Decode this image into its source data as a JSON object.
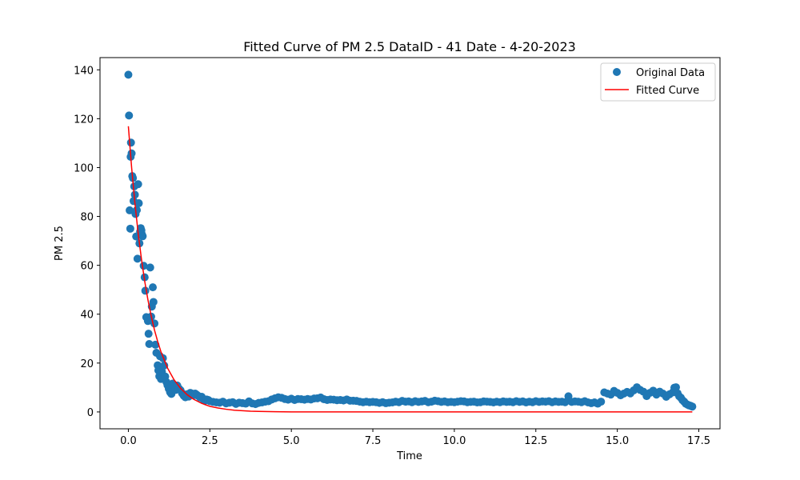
{
  "chart_data": {
    "type": "scatter",
    "title": "Fitted Curve of PM 2.5 DataID - 41 Date - 4-20-2023",
    "xlabel": "Time",
    "ylabel": "PM 2.5",
    "xlim": [
      -0.87,
      18.15
    ],
    "ylim": [
      -6.9,
      145.0
    ],
    "x_ticks": [
      0.0,
      2.5,
      5.0,
      7.5,
      10.0,
      12.5,
      15.0,
      17.5
    ],
    "x_tick_labels": [
      "0.0",
      "2.5",
      "5.0",
      "7.5",
      "10.0",
      "12.5",
      "15.0",
      "17.5"
    ],
    "y_ticks": [
      0,
      20,
      40,
      60,
      80,
      100,
      120,
      140
    ],
    "y_tick_labels": [
      "0",
      "20",
      "40",
      "60",
      "80",
      "100",
      "120",
      "140"
    ],
    "grid": false,
    "legend_position": "top-right",
    "series": [
      {
        "name": "Original Data",
        "kind": "scatter",
        "color": "#1f77b4",
        "points": [
          [
            0.0,
            138.0
          ],
          [
            0.02,
            121.3
          ],
          [
            0.04,
            82.5
          ],
          [
            0.06,
            75.0
          ],
          [
            0.07,
            104.4
          ],
          [
            0.08,
            110.2
          ],
          [
            0.1,
            105.8
          ],
          [
            0.12,
            96.5
          ],
          [
            0.14,
            95.7
          ],
          [
            0.16,
            86.3
          ],
          [
            0.18,
            92.3
          ],
          [
            0.2,
            88.9
          ],
          [
            0.22,
            81.0
          ],
          [
            0.24,
            71.8
          ],
          [
            0.26,
            82.6
          ],
          [
            0.28,
            62.7
          ],
          [
            0.3,
            93.2
          ],
          [
            0.32,
            85.4
          ],
          [
            0.34,
            69.0
          ],
          [
            0.36,
            73.8
          ],
          [
            0.38,
            75.2
          ],
          [
            0.4,
            74.3
          ],
          [
            0.42,
            72.6
          ],
          [
            0.44,
            71.9
          ],
          [
            0.47,
            59.8
          ],
          [
            0.5,
            55.1
          ],
          [
            0.52,
            49.6
          ],
          [
            0.55,
            38.8
          ],
          [
            0.58,
            38.6
          ],
          [
            0.6,
            37.2
          ],
          [
            0.62,
            32.0
          ],
          [
            0.64,
            27.8
          ],
          [
            0.67,
            59.1
          ],
          [
            0.7,
            39.0
          ],
          [
            0.72,
            43.1
          ],
          [
            0.75,
            51.0
          ],
          [
            0.77,
            45.0
          ],
          [
            0.8,
            36.2
          ],
          [
            0.83,
            27.5
          ],
          [
            0.86,
            24.2
          ],
          [
            0.9,
            19.1
          ],
          [
            0.92,
            17.0
          ],
          [
            0.95,
            14.6
          ],
          [
            0.97,
            22.8
          ],
          [
            1.0,
            13.5
          ],
          [
            1.03,
            16.5
          ],
          [
            1.06,
            22.0
          ],
          [
            1.1,
            19.0
          ],
          [
            1.13,
            14.5
          ],
          [
            1.17,
            12.2
          ],
          [
            1.2,
            11.0
          ],
          [
            1.24,
            9.5
          ],
          [
            1.28,
            8.1
          ],
          [
            1.32,
            7.4
          ],
          [
            1.36,
            11.6
          ],
          [
            1.4,
            10.5
          ],
          [
            1.45,
            9.0
          ],
          [
            1.5,
            10.8
          ],
          [
            1.55,
            9.6
          ],
          [
            1.6,
            8.9
          ],
          [
            1.65,
            7.6
          ],
          [
            1.7,
            6.6
          ],
          [
            1.75,
            6.0
          ],
          [
            1.8,
            7.2
          ],
          [
            1.85,
            6.3
          ],
          [
            1.9,
            7.8
          ],
          [
            1.95,
            7.5
          ],
          [
            2.0,
            6.8
          ],
          [
            2.05,
            7.5
          ],
          [
            2.1,
            7.0
          ],
          [
            2.15,
            6.5
          ],
          [
            2.2,
            5.9
          ],
          [
            2.25,
            6.2
          ],
          [
            2.3,
            5.2
          ],
          [
            2.35,
            4.6
          ],
          [
            2.4,
            5.1
          ],
          [
            2.45,
            4.9
          ],
          [
            2.5,
            4.4
          ],
          [
            2.6,
            4.1
          ],
          [
            2.7,
            3.9
          ],
          [
            2.8,
            3.8
          ],
          [
            2.9,
            4.2
          ],
          [
            3.0,
            3.5
          ],
          [
            3.1,
            3.8
          ],
          [
            3.2,
            4.0
          ],
          [
            3.3,
            3.3
          ],
          [
            3.4,
            3.8
          ],
          [
            3.5,
            3.6
          ],
          [
            3.6,
            3.4
          ],
          [
            3.7,
            4.3
          ],
          [
            3.8,
            3.5
          ],
          [
            3.9,
            3.2
          ],
          [
            4.0,
            3.7
          ],
          [
            4.1,
            3.9
          ],
          [
            4.2,
            4.2
          ],
          [
            4.3,
            4.4
          ],
          [
            4.4,
            5.1
          ],
          [
            4.5,
            5.6
          ],
          [
            4.6,
            6.0
          ],
          [
            4.7,
            5.8
          ],
          [
            4.8,
            5.3
          ],
          [
            4.9,
            5.0
          ],
          [
            5.0,
            5.4
          ],
          [
            5.1,
            4.9
          ],
          [
            5.2,
            5.3
          ],
          [
            5.3,
            5.2
          ],
          [
            5.4,
            5.0
          ],
          [
            5.5,
            5.3
          ],
          [
            5.6,
            5.1
          ],
          [
            5.7,
            5.5
          ],
          [
            5.8,
            5.6
          ],
          [
            5.9,
            5.9
          ],
          [
            6.0,
            5.2
          ],
          [
            6.1,
            4.9
          ],
          [
            6.2,
            5.1
          ],
          [
            6.3,
            5.0
          ],
          [
            6.4,
            4.8
          ],
          [
            6.5,
            4.9
          ],
          [
            6.6,
            4.7
          ],
          [
            6.7,
            5.1
          ],
          [
            6.8,
            4.6
          ],
          [
            6.9,
            4.6
          ],
          [
            7.0,
            4.5
          ],
          [
            7.1,
            4.2
          ],
          [
            7.2,
            4.0
          ],
          [
            7.3,
            4.2
          ],
          [
            7.4,
            4.0
          ],
          [
            7.5,
            4.1
          ],
          [
            7.6,
            4.0
          ],
          [
            7.7,
            3.7
          ],
          [
            7.8,
            4.0
          ],
          [
            7.9,
            3.6
          ],
          [
            8.0,
            3.8
          ],
          [
            8.1,
            3.9
          ],
          [
            8.2,
            4.2
          ],
          [
            8.3,
            4.0
          ],
          [
            8.4,
            4.5
          ],
          [
            8.5,
            4.2
          ],
          [
            8.6,
            4.3
          ],
          [
            8.7,
            4.0
          ],
          [
            8.8,
            4.4
          ],
          [
            8.9,
            4.1
          ],
          [
            9.0,
            4.3
          ],
          [
            9.1,
            4.5
          ],
          [
            9.2,
            4.0
          ],
          [
            9.3,
            4.2
          ],
          [
            9.4,
            4.6
          ],
          [
            9.5,
            4.4
          ],
          [
            9.6,
            4.1
          ],
          [
            9.7,
            4.3
          ],
          [
            9.8,
            4.0
          ],
          [
            9.9,
            4.1
          ],
          [
            10.0,
            4.0
          ],
          [
            10.1,
            4.2
          ],
          [
            10.2,
            4.4
          ],
          [
            10.3,
            4.3
          ],
          [
            10.4,
            4.0
          ],
          [
            10.5,
            4.1
          ],
          [
            10.6,
            4.2
          ],
          [
            10.7,
            3.9
          ],
          [
            10.8,
            4.0
          ],
          [
            10.9,
            4.3
          ],
          [
            11.0,
            4.2
          ],
          [
            11.1,
            4.1
          ],
          [
            11.2,
            3.9
          ],
          [
            11.3,
            4.2
          ],
          [
            11.4,
            4.0
          ],
          [
            11.5,
            4.3
          ],
          [
            11.6,
            4.1
          ],
          [
            11.7,
            4.2
          ],
          [
            11.8,
            4.0
          ],
          [
            11.9,
            4.4
          ],
          [
            12.0,
            4.1
          ],
          [
            12.1,
            4.3
          ],
          [
            12.2,
            3.9
          ],
          [
            12.3,
            4.2
          ],
          [
            12.4,
            4.0
          ],
          [
            12.5,
            4.4
          ],
          [
            12.6,
            4.1
          ],
          [
            12.7,
            4.3
          ],
          [
            12.8,
            4.2
          ],
          [
            12.9,
            4.4
          ],
          [
            13.0,
            4.0
          ],
          [
            13.1,
            4.3
          ],
          [
            13.2,
            4.1
          ],
          [
            13.3,
            4.2
          ],
          [
            13.4,
            4.0
          ],
          [
            13.5,
            6.4
          ],
          [
            13.6,
            4.1
          ],
          [
            13.7,
            4.3
          ],
          [
            13.8,
            4.2
          ],
          [
            13.9,
            4.0
          ],
          [
            14.0,
            4.4
          ],
          [
            14.1,
            3.9
          ],
          [
            14.2,
            3.6
          ],
          [
            14.3,
            3.9
          ],
          [
            14.4,
            3.4
          ],
          [
            14.5,
            4.2
          ],
          [
            14.6,
            8.0
          ],
          [
            14.7,
            7.5
          ],
          [
            14.8,
            7.1
          ],
          [
            14.9,
            8.6
          ],
          [
            15.0,
            7.8
          ],
          [
            15.1,
            6.8
          ],
          [
            15.2,
            7.5
          ],
          [
            15.3,
            8.2
          ],
          [
            15.4,
            7.6
          ],
          [
            15.5,
            8.8
          ],
          [
            15.6,
            10.1
          ],
          [
            15.7,
            9.0
          ],
          [
            15.8,
            8.3
          ],
          [
            15.9,
            6.5
          ],
          [
            16.0,
            7.8
          ],
          [
            16.1,
            8.7
          ],
          [
            16.2,
            7.1
          ],
          [
            16.3,
            8.3
          ],
          [
            16.4,
            7.5
          ],
          [
            16.5,
            6.2
          ],
          [
            16.6,
            7.2
          ],
          [
            16.7,
            8.0
          ],
          [
            16.75,
            9.9
          ],
          [
            16.8,
            10.1
          ],
          [
            16.85,
            7.6
          ],
          [
            16.9,
            6.4
          ],
          [
            16.95,
            5.8
          ],
          [
            17.0,
            4.8
          ],
          [
            17.05,
            4.2
          ],
          [
            17.1,
            3.4
          ],
          [
            17.15,
            3.0
          ],
          [
            17.2,
            2.7
          ],
          [
            17.25,
            2.5
          ],
          [
            17.3,
            2.2
          ]
        ]
      },
      {
        "name": "Fitted Curve",
        "kind": "line",
        "color": "#ff0000",
        "points": [
          [
            0.0,
            116.9
          ],
          [
            0.1,
            100.0
          ],
          [
            0.2,
            85.6
          ],
          [
            0.3,
            73.2
          ],
          [
            0.4,
            62.7
          ],
          [
            0.5,
            53.6
          ],
          [
            0.6,
            45.9
          ],
          [
            0.7,
            39.3
          ],
          [
            0.8,
            33.6
          ],
          [
            0.9,
            28.8
          ],
          [
            1.0,
            24.6
          ],
          [
            1.2,
            18.0
          ],
          [
            1.4,
            13.2
          ],
          [
            1.6,
            9.7
          ],
          [
            1.8,
            7.1
          ],
          [
            2.0,
            5.2
          ],
          [
            2.25,
            3.5
          ],
          [
            2.5,
            2.3
          ],
          [
            2.75,
            1.6
          ],
          [
            3.0,
            1.1
          ],
          [
            3.25,
            0.7
          ],
          [
            3.5,
            0.5
          ],
          [
            3.75,
            0.3
          ],
          [
            4.0,
            0.2
          ],
          [
            4.5,
            0.1
          ],
          [
            5.0,
            0.0
          ],
          [
            6.0,
            0.0
          ],
          [
            8.0,
            0.0
          ],
          [
            10.0,
            0.0
          ],
          [
            12.0,
            0.0
          ],
          [
            14.0,
            0.0
          ],
          [
            16.0,
            0.0
          ],
          [
            17.3,
            0.0
          ]
        ]
      }
    ]
  }
}
